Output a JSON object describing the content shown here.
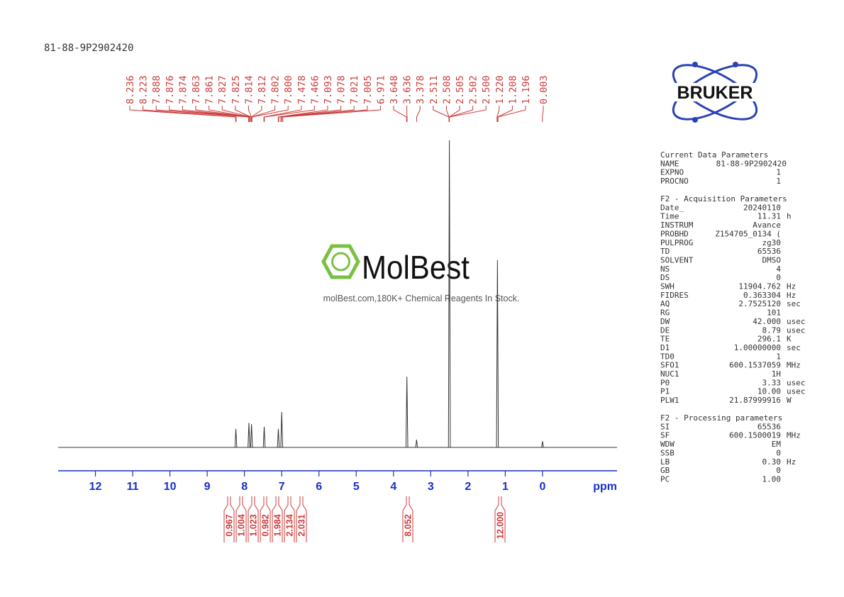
{
  "title": "81-88-9P2902420",
  "chart_data": {
    "type": "nmr",
    "xlim": [
      13,
      -2
    ],
    "xticks": [
      12,
      11,
      10,
      9,
      8,
      7,
      6,
      5,
      4,
      3,
      2,
      1,
      0
    ],
    "xlabel": "ppm",
    "ylim": [
      0,
      100
    ],
    "color": "#333333",
    "axis_color": "#1a2fc8",
    "peaks": {
      "x": [
        8.23,
        7.88,
        7.81,
        7.47,
        7.09,
        7.0,
        3.64,
        3.38,
        2.5,
        1.21,
        0.0
      ],
      "values": [
        6,
        8,
        7.6,
        6.7,
        6,
        11.5,
        23,
        2.5,
        100,
        61,
        2
      ]
    },
    "label_color": "#cc3b3b",
    "peak_labels": [
      {
        "value": 8.236,
        "label": "8.236"
      },
      {
        "value": 8.223,
        "label": "8.223"
      },
      {
        "value": 7.888,
        "label": "7.888"
      },
      {
        "value": 7.876,
        "label": "7.876"
      },
      {
        "value": 7.874,
        "label": "7.874"
      },
      {
        "value": 7.863,
        "label": "7.863"
      },
      {
        "value": 7.861,
        "label": "7.861"
      },
      {
        "value": 7.827,
        "label": "7.827"
      },
      {
        "value": 7.825,
        "label": "7.825"
      },
      {
        "value": 7.814,
        "label": "7.814"
      },
      {
        "value": 7.812,
        "label": "7.812"
      },
      {
        "value": 7.802,
        "label": "7.802"
      },
      {
        "value": 7.8,
        "label": "7.800"
      },
      {
        "value": 7.478,
        "label": "7.478"
      },
      {
        "value": 7.466,
        "label": "7.466"
      },
      {
        "value": 7.093,
        "label": "7.093"
      },
      {
        "value": 7.078,
        "label": "7.078"
      },
      {
        "value": 7.021,
        "label": "7.021"
      },
      {
        "value": 7.005,
        "label": "7.005"
      },
      {
        "value": 6.971,
        "label": "6.971"
      },
      {
        "value": 3.648,
        "label": "3.648"
      },
      {
        "value": 3.636,
        "label": "3.636"
      },
      {
        "value": 3.378,
        "label": "3.378"
      },
      {
        "value": 2.511,
        "label": "2.511"
      },
      {
        "value": 2.508,
        "label": "2.508"
      },
      {
        "value": 2.505,
        "label": "2.505"
      },
      {
        "value": 2.502,
        "label": "2.502"
      },
      {
        "value": 2.5,
        "label": "2.500"
      },
      {
        "value": 1.22,
        "label": "1.220"
      },
      {
        "value": 1.208,
        "label": "1.208"
      },
      {
        "value": 1.196,
        "label": "1.196"
      },
      {
        "value": 0.003,
        "label": "0.003"
      }
    ],
    "integrals": [
      0.967,
      1.004,
      1.023,
      0.982,
      1.984,
      2.134,
      2.031,
      8.052,
      {
        "value": 12,
        "label": "12.000"
      }
    ]
  },
  "watermark": {
    "brand": "MolBest",
    "text": "molBest.com,180K+ Chemical Reagents In Stock."
  },
  "logo": "BRUKER",
  "parameters": [
    {
      "title": "Current Data Parameters",
      "rows": [
        [
          "NAME",
          "81-88-9P2902420"
        ],
        [
          "EXPNO",
          "1"
        ],
        [
          "PROCNO",
          "1"
        ]
      ]
    },
    {
      "title": "F2 - Acquisition Parameters",
      "rows": [
        [
          "Date_",
          "20240110"
        ],
        [
          "Time",
          "11.31",
          "h"
        ],
        [
          "INSTRUM",
          "Avance"
        ],
        [
          "PROBHD",
          "Z154705_0134 ("
        ],
        [
          "PULPROG",
          "zg30"
        ],
        [
          "TD",
          "65536"
        ],
        [
          "SOLVENT",
          "DMSO"
        ],
        [
          "NS",
          "4"
        ],
        [
          "DS",
          "0"
        ],
        [
          "SWH",
          "11904.762",
          "Hz"
        ],
        [
          "FIDRES",
          "0.363304",
          "Hz"
        ],
        [
          "AQ",
          "2.7525120",
          "sec"
        ],
        [
          "RG",
          "101"
        ],
        [
          "DW",
          "42.000",
          "usec"
        ],
        [
          "DE",
          "8.79",
          "usec"
        ],
        [
          "TE",
          "296.1",
          "K"
        ],
        [
          "D1",
          "1.00000000",
          "sec"
        ],
        [
          "TD0",
          "1"
        ],
        [
          "SFO1",
          "600.1537059",
          "MHz"
        ],
        [
          "NUC1",
          "1H"
        ],
        [
          "P0",
          "3.33",
          "usec"
        ],
        [
          "P1",
          "10.00",
          "usec"
        ],
        [
          "PLW1",
          "21.87999916",
          "W"
        ]
      ]
    },
    {
      "title": "F2 - Processing parameters",
      "rows": [
        [
          "SI",
          "65536"
        ],
        [
          "SF",
          "600.1500019",
          "MHz"
        ],
        [
          "WDW",
          "EM"
        ],
        [
          "SSB",
          "0"
        ],
        [
          "LB",
          "0.30",
          "Hz"
        ],
        [
          "GB",
          "0"
        ],
        [
          "PC",
          "1.00"
        ]
      ]
    }
  ]
}
